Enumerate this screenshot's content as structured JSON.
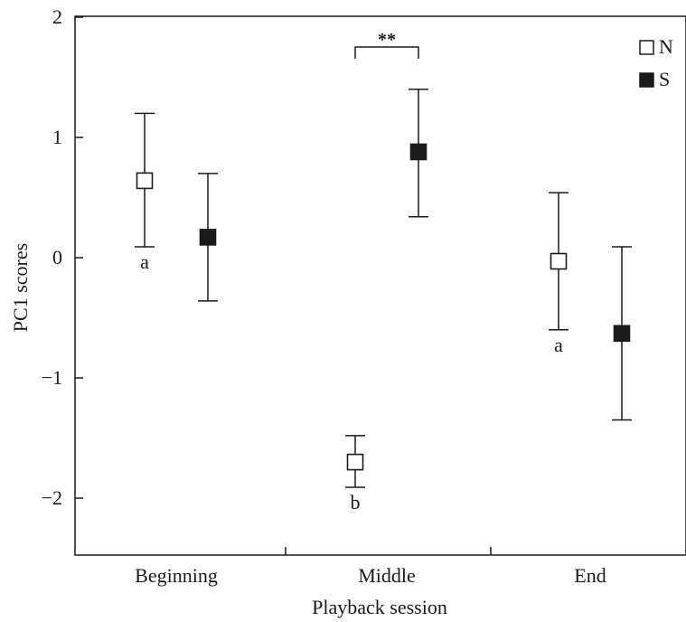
{
  "chart_data": {
    "type": "scatter",
    "subtype": "error-bar",
    "xlabel": "Playback session",
    "ylabel": "PC1 scores",
    "categories": [
      "Beginning",
      "Middle",
      "End"
    ],
    "ylim": [
      -2.5,
      2
    ],
    "yticks": [
      2,
      1,
      0,
      -1,
      -2
    ],
    "ytick_labels": [
      "2",
      "1",
      "0",
      "−1",
      "−2"
    ],
    "legend_position": "top-right",
    "series": [
      {
        "name": "N",
        "marker": "open-square",
        "means": [
          0.64,
          -1.7,
          -0.03
        ],
        "upper": [
          1.2,
          -1.48,
          0.54
        ],
        "lower": [
          0.09,
          -1.91,
          -0.6
        ],
        "letters": [
          "a",
          "b",
          "a"
        ]
      },
      {
        "name": "S",
        "marker": "filled-square",
        "means": [
          0.17,
          0.88,
          -0.63
        ],
        "upper": [
          0.7,
          1.4,
          0.09
        ],
        "lower": [
          -0.36,
          0.34,
          -1.35
        ]
      }
    ],
    "annotations": [
      {
        "text": "**",
        "category": "Middle",
        "bracket_between": [
          "N",
          "S"
        ]
      }
    ],
    "grid": false
  }
}
